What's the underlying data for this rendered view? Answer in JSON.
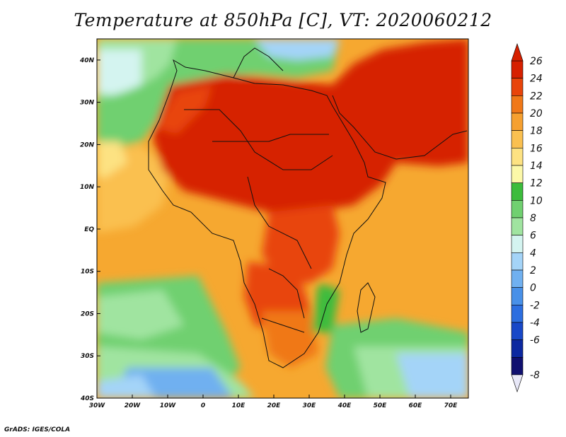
{
  "title": "Temperature at 850hPa [C], VT: 2020060212",
  "footer": "GrADS: IGES/COLA",
  "map": {
    "lon_range": [
      -30,
      75
    ],
    "lat_range": [
      -40,
      45
    ],
    "lon_ticks": [
      "30W",
      "20W",
      "10W",
      "0",
      "10E",
      "20E",
      "30E",
      "40E",
      "50E",
      "60E",
      "70E"
    ],
    "lat_ticks": [
      "40S",
      "30S",
      "20S",
      "10S",
      "EQ",
      "10N",
      "20N",
      "30N",
      "40N"
    ],
    "field": "temperature_850hPa",
    "units": "C"
  },
  "colorbar": {
    "labels": [
      "26",
      "24",
      "22",
      "20",
      "18",
      "16",
      "14",
      "12",
      "10",
      "8",
      "6",
      "4",
      "2",
      "0",
      "-2",
      "-4",
      "-6",
      "-8"
    ],
    "colors": [
      "#d62000",
      "#e8440a",
      "#f07818",
      "#f6a030",
      "#fac050",
      "#fde282",
      "#fcf8a8",
      "#3cbc3c",
      "#70d070",
      "#a0e4a0",
      "#d4f4f0",
      "#a4d4f8",
      "#70b0f0",
      "#4890e8",
      "#2c6ee0",
      "#1848c8",
      "#0c28a0",
      "#101070"
    ],
    "under_color": "#e8e8f8"
  }
}
